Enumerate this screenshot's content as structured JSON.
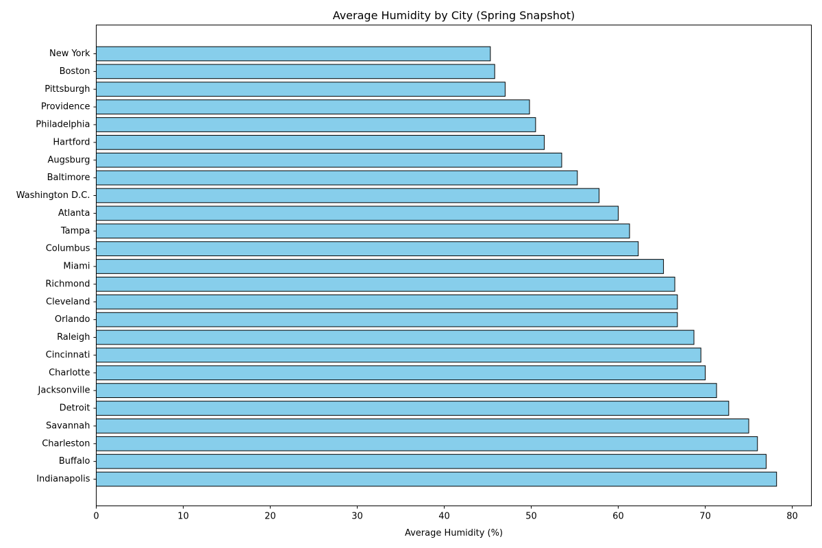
{
  "chart_data": {
    "type": "bar",
    "orientation": "horizontal",
    "title": "Average Humidity by City (Spring Snapshot)",
    "xlabel": "Average Humidity (%)",
    "ylabel": "",
    "xlim": [
      0,
      82.2
    ],
    "xticks": [
      0,
      10,
      20,
      30,
      40,
      50,
      60,
      70,
      80
    ],
    "grid": false,
    "bar_color": "#87CEEB",
    "edge_color": "#000000",
    "categories": [
      "New York",
      "Boston",
      "Pittsburgh",
      "Providence",
      "Philadelphia",
      "Hartford",
      "Augsburg",
      "Baltimore",
      "Washington D.C.",
      "Atlanta",
      "Tampa",
      "Columbus",
      "Miami",
      "Richmond",
      "Cleveland",
      "Orlando",
      "Raleigh",
      "Cincinnati",
      "Charlotte",
      "Jacksonville",
      "Detroit",
      "Savannah",
      "Charleston",
      "Buffalo",
      "Indianapolis"
    ],
    "values": [
      45.3,
      45.8,
      47.0,
      49.8,
      50.5,
      51.5,
      53.5,
      55.3,
      57.8,
      60.0,
      61.3,
      62.3,
      65.2,
      66.5,
      66.8,
      66.8,
      68.7,
      69.5,
      70.0,
      71.3,
      72.7,
      75.0,
      76.0,
      77.0,
      78.2
    ]
  }
}
